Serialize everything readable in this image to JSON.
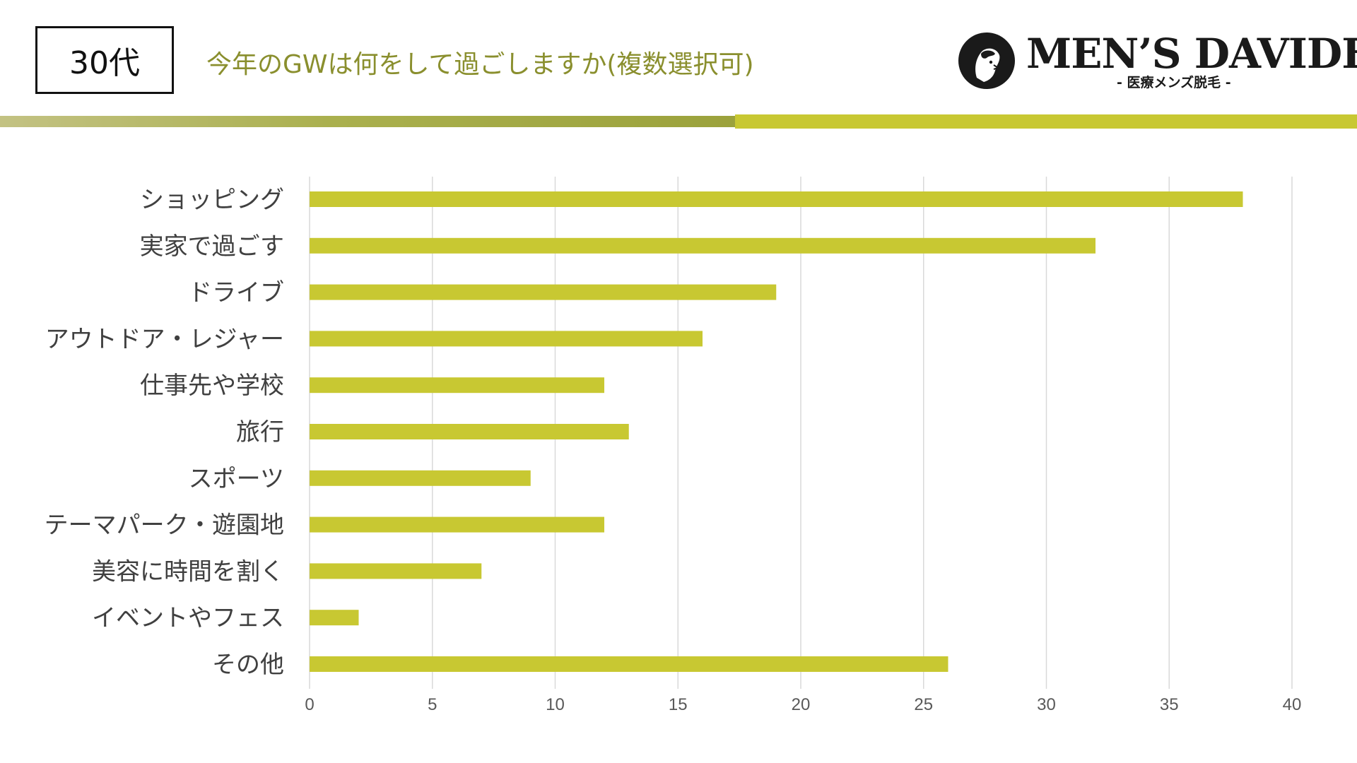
{
  "header": {
    "age_group": "30代",
    "question": "今年のGWは何をして過ごしますか(複数選択可)"
  },
  "logo": {
    "brand": "MEN’S DAVIDE",
    "tagline": "- 医療メンズ脱毛 -",
    "icon": "statue-bust-icon"
  },
  "colors": {
    "bar": "#c8c832",
    "question_text": "#8a8f2e",
    "band_right": "#c8c832",
    "grid": "#d9d9d9"
  },
  "chart_data": {
    "type": "bar",
    "orientation": "horizontal",
    "categories": [
      "ショッピング",
      "実家で過ごす",
      "ドライブ",
      "アウトドア・レジャー",
      "仕事先や学校",
      "旅行",
      "スポーツ",
      "テーマパーク・遊園地",
      "美容に時間を割く",
      "イベントやフェス",
      "その他"
    ],
    "values": [
      38,
      32,
      19,
      16,
      12,
      13,
      9,
      12,
      7,
      2,
      26
    ],
    "xlim": [
      0,
      40
    ],
    "xticks": [
      0,
      5,
      10,
      15,
      20,
      25,
      30,
      35,
      40
    ],
    "grid": "vertical",
    "legend": "none"
  }
}
